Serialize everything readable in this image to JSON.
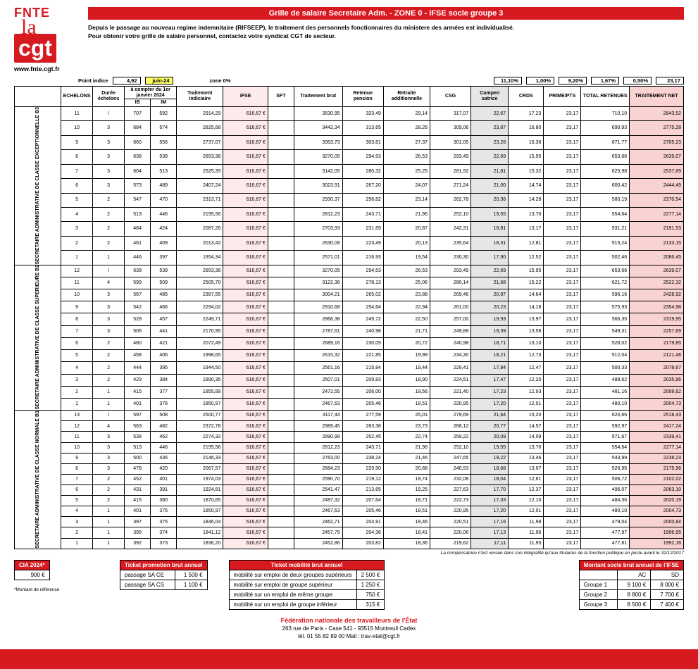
{
  "logo": {
    "line1": "FNTE",
    "line2": "la",
    "line3": "cgt",
    "url": "www.fnte.cgt.fr"
  },
  "title": "Grille de salaire Secretaire Adm. - ZONE 0 - IFSE socle groupe 3",
  "subtitle1": "Depuis le passage au nouveau regime indemnitaire (RIFSEEP), le traitement des personnels fonctionnaires du ministere des armées est individualisé.",
  "subtitle2": "Pour obtenir votre grille de salaire personnel, contactez votre syndicat CGT de secteur.",
  "params": {
    "point_indice_label": "Point indice",
    "point_indice": "4,92",
    "periode": "juin-24",
    "zone_label": "zone 0%"
  },
  "rates": [
    "11,10%",
    "1,00%",
    "9,20%",
    "1,67%",
    "0,50%",
    "23,17"
  ],
  "headers": {
    "echelons": "ECHELONS",
    "duree": "Durée échelons",
    "compter": "à compter du 1er janvier 2024",
    "ib": "IB",
    "im": "IM",
    "trait_ind": "Traitement indiciaire",
    "ifse": "IFSE",
    "sft": "SFT",
    "trait_brut": "Traitement brut",
    "ret_pension": "Retenue pension",
    "ret_add": "Retraite additionnelle",
    "csg": "CSG",
    "compens": "Compen satrice",
    "crds": "CRDS",
    "prime": "PRIME/PTS",
    "total_ret": "TOTAL RETENUES",
    "trait_net": "TRAITEMENT NET"
  },
  "side": [
    "SECRETAIRE ADMINISTRATIVE DE CLASSE EXCEPTIONNELLE B3",
    "SECRETAIRE ADMINISTRATIVE DE CLASSE SUPERIEURE B2",
    "SECRETAIRE ADMINISTRATIVE DE CLASSE NORMALE B1"
  ],
  "rows": [
    [
      "11",
      "/",
      "707",
      "592",
      "2914,29",
      "616,67 €",
      "",
      "3530,95",
      "323,49",
      "29,14",
      "317,07",
      "22,67",
      "17,23",
      "23,17",
      "710,10",
      "2843,52"
    ],
    [
      "10",
      "3",
      "684",
      "574",
      "2825,68",
      "616,67 €",
      "",
      "3442,34",
      "313,65",
      "28,26",
      "309,06",
      "23,87",
      "16,80",
      "23,17",
      "690,93",
      "2775,28"
    ],
    [
      "9",
      "3",
      "660",
      "556",
      "2737,07",
      "616,67 €",
      "",
      "3353,73",
      "303,81",
      "27,37",
      "301,05",
      "23,26",
      "16,36",
      "23,17",
      "671,77",
      "2705,23"
    ],
    [
      "8",
      "3",
      "638",
      "539",
      "2653,38",
      "616,67 €",
      "",
      "3270,05",
      "294,53",
      "26,53",
      "293,49",
      "22,69",
      "15,95",
      "23,17",
      "653,66",
      "2639,07"
    ],
    [
      "7",
      "3",
      "604",
      "513",
      "2525,39",
      "616,67 €",
      "",
      "3142,05",
      "280,32",
      "25,25",
      "281,92",
      "21,81",
      "15,32",
      "23,17",
      "625,98",
      "2537,89"
    ],
    [
      "6",
      "3",
      "573",
      "489",
      "2407,24",
      "616,67 €",
      "",
      "3023,91",
      "267,20",
      "24,07",
      "271,24",
      "21,00",
      "14,74",
      "23,17",
      "600,42",
      "2444,49"
    ],
    [
      "5",
      "2",
      "547",
      "470",
      "2313,71",
      "616,67 €",
      "",
      "2930,37",
      "256,82",
      "23,14",
      "262,78",
      "20,36",
      "14,28",
      "23,17",
      "580,19",
      "2370,54"
    ],
    [
      "4",
      "2",
      "513",
      "446",
      "2195,56",
      "616,67 €",
      "",
      "2812,23",
      "243,71",
      "21,96",
      "252,10",
      "19,55",
      "13,70",
      "23,17",
      "554,64",
      "2277,14"
    ],
    [
      "3",
      "2",
      "484",
      "424",
      "2087,26",
      "616,67 €",
      "",
      "2703,93",
      "231,69",
      "20,87",
      "242,31",
      "18,81",
      "13,17",
      "23,17",
      "531,21",
      "2191,53"
    ],
    [
      "2",
      "2",
      "461",
      "409",
      "2013,42",
      "616,67 €",
      "",
      "2630,08",
      "223,49",
      "20,13",
      "235,64",
      "18,31",
      "12,81",
      "23,17",
      "515,24",
      "2133,15"
    ],
    [
      "1",
      "1",
      "446",
      "397",
      "1954,34",
      "616,67 €",
      "",
      "2571,01",
      "216,93",
      "19,54",
      "230,30",
      "17,90",
      "12,52",
      "23,17",
      "502,46",
      "2086,45"
    ],
    [
      "12",
      "/",
      "638",
      "539",
      "2653,38",
      "616,67 €",
      "",
      "3270,05",
      "294,53",
      "26,53",
      "293,49",
      "22,69",
      "15,95",
      "23,17",
      "653,66",
      "2639,07"
    ],
    [
      "11",
      "4",
      "599",
      "509",
      "2505,70",
      "616,67 €",
      "",
      "3122,36",
      "278,13",
      "25,06",
      "280,14",
      "21,68",
      "15,22",
      "23,17",
      "621,72",
      "2522,32"
    ],
    [
      "10",
      "3",
      "567",
      "485",
      "2387,55",
      "616,67 €",
      "",
      "3004,21",
      "265,02",
      "23,88",
      "269,46",
      "20,87",
      "14,64",
      "23,17",
      "596,16",
      "2428,92"
    ],
    [
      "9",
      "3",
      "542",
      "466",
      "2294,02",
      "616,67 €",
      "",
      "2910,68",
      "254,64",
      "22,94",
      "261,00",
      "20,23",
      "14,18",
      "23,17",
      "575,93",
      "2354,98"
    ],
    [
      "8",
      "3",
      "528",
      "457",
      "2249,71",
      "616,67 €",
      "",
      "2866,38",
      "249,72",
      "22,50",
      "257,00",
      "19,93",
      "13,97",
      "23,17",
      "566,35",
      "2319,95"
    ],
    [
      "7",
      "3",
      "506",
      "441",
      "2170,95",
      "616,67 €",
      "",
      "2787,61",
      "240,98",
      "21,71",
      "249,88",
      "19,39",
      "13,58",
      "23,17",
      "549,31",
      "2257,69"
    ],
    [
      "6",
      "2",
      "480",
      "421",
      "2072,49",
      "616,67 €",
      "",
      "2689,16",
      "230,05",
      "20,72",
      "240,98",
      "18,71",
      "13,10",
      "23,17",
      "528,02",
      "2179,85"
    ],
    [
      "5",
      "2",
      "458",
      "406",
      "1998,65",
      "616,67 €",
      "",
      "2615,32",
      "221,85",
      "19,99",
      "234,30",
      "18,21",
      "12,73",
      "23,17",
      "512,04",
      "2121,48"
    ],
    [
      "4",
      "2",
      "444",
      "395",
      "1944,50",
      "616,67 €",
      "",
      "2561,16",
      "215,84",
      "19,44",
      "229,41",
      "17,84",
      "12,47",
      "23,17",
      "500,33",
      "2078,67"
    ],
    [
      "3",
      "2",
      "429",
      "384",
      "1890,35",
      "616,67 €",
      "",
      "2507,01",
      "209,83",
      "18,90",
      "224,51",
      "17,47",
      "12,20",
      "23,17",
      "488,62",
      "2035,86"
    ],
    [
      "2",
      "1",
      "415",
      "377",
      "1855,89",
      "616,67 €",
      "",
      "2472,55",
      "206,00",
      "18,56",
      "221,40",
      "17,23",
      "12,03",
      "23,17",
      "481,16",
      "2008,62"
    ],
    [
      "1",
      "1",
      "401",
      "376",
      "1850,97",
      "616,67 €",
      "",
      "2467,63",
      "205,46",
      "18,51",
      "220,95",
      "17,20",
      "12,01",
      "23,17",
      "480,10",
      "2004,73"
    ],
    [
      "13",
      "/",
      "597",
      "508",
      "2500,77",
      "616,67 €",
      "",
      "3117,44",
      "277,59",
      "25,01",
      "279,69",
      "21,64",
      "15,20",
      "23,17",
      "620,66",
      "2518,43"
    ],
    [
      "12",
      "4",
      "563",
      "482",
      "2372,78",
      "616,67 €",
      "",
      "2989,45",
      "263,38",
      "23,73",
      "268,12",
      "20,77",
      "14,57",
      "23,17",
      "592,97",
      "2417,24"
    ],
    [
      "11",
      "3",
      "538",
      "462",
      "2274,32",
      "616,67 €",
      "",
      "2890,99",
      "252,45",
      "22,74",
      "259,22",
      "20,09",
      "14,09",
      "23,17",
      "571,67",
      "2339,41"
    ],
    [
      "10",
      "3",
      "513",
      "446",
      "2195,56",
      "616,67 €",
      "",
      "2812,23",
      "243,71",
      "21,96",
      "252,10",
      "19,55",
      "13,70",
      "23,17",
      "554,64",
      "2277,14"
    ],
    [
      "9",
      "3",
      "500",
      "436",
      "2146,33",
      "616,67 €",
      "",
      "2763,00",
      "238,24",
      "21,46",
      "247,65",
      "19,22",
      "13,46",
      "23,17",
      "543,99",
      "2238,23"
    ],
    [
      "8",
      "3",
      "478",
      "420",
      "2067,57",
      "616,67 €",
      "",
      "2684,23",
      "229,50",
      "20,68",
      "240,53",
      "18,68",
      "13,07",
      "23,17",
      "526,95",
      "2175,96"
    ],
    [
      "7",
      "2",
      "452",
      "401",
      "1974,03",
      "616,67 €",
      "",
      "2590,70",
      "219,12",
      "19,74",
      "232,08",
      "18,04",
      "12,61",
      "23,17",
      "506,72",
      "2102,02"
    ],
    [
      "6",
      "2",
      "431",
      "391",
      "1924,81",
      "616,67 €",
      "",
      "2541,47",
      "213,65",
      "19,25",
      "227,63",
      "17,70",
      "12,37",
      "23,17",
      "496,07",
      "2063,10"
    ],
    [
      "5",
      "2",
      "415",
      "380",
      "1870,65",
      "616,67 €",
      "",
      "2487,32",
      "207,64",
      "18,71",
      "222,73",
      "17,33",
      "12,10",
      "23,17",
      "484,36",
      "2020,19"
    ],
    [
      "4",
      "1",
      "401",
      "376",
      "1850,97",
      "616,67 €",
      "",
      "2467,63",
      "205,46",
      "18,51",
      "220,95",
      "17,20",
      "12,01",
      "23,17",
      "480,10",
      "2004,73"
    ],
    [
      "3",
      "1",
      "397",
      "375",
      "1846,04",
      "616,67 €",
      "",
      "2462,71",
      "204,91",
      "18,46",
      "220,51",
      "17,16",
      "11,98",
      "23,17",
      "479,04",
      "2000,84"
    ],
    [
      "2",
      "1",
      "395",
      "374",
      "1841,12",
      "616,67 €",
      "",
      "2457,79",
      "204,36",
      "18,41",
      "220,06",
      "17,13",
      "11,96",
      "23,17",
      "477,97",
      "1996,95"
    ],
    [
      "1",
      "1",
      "392",
      "373",
      "1836,20",
      "616,67 €",
      "",
      "2452,86",
      "203,82",
      "18,36",
      "219,62",
      "17,11",
      "11,93",
      "23,17",
      "477,81",
      "1992,16"
    ]
  ],
  "section_spans": [
    11,
    12,
    13
  ],
  "footnote": "La compensatrice n'est versée dans son intégralité qu'aux titulaires de la fonction publique en poste avant le 31/12/2017",
  "cia": {
    "title": "CIA 2024*",
    "value": "900 €",
    "note": "*Montant de référence"
  },
  "ticket_promo": {
    "title": "Ticket promotion brut annuel",
    "rows": [
      [
        "passage SA CE",
        "1 500 €"
      ],
      [
        "passage SA CS",
        "1 100 €"
      ]
    ]
  },
  "ticket_mob": {
    "title": "Ticket mobilité brut annuel",
    "rows": [
      [
        "mobilité sur emploi de deux groupes supérieurs",
        "2 500 €"
      ],
      [
        "mobilité sur emploi de groupe supérieur",
        "1 250 €"
      ],
      [
        "mobilité sur un emploi de même groupe",
        "750 €"
      ],
      [
        "mobilité sur un emploi de groupe inférieur",
        "315 €"
      ]
    ]
  },
  "socle": {
    "title": "Montant socle brut annuel de l'IFSE",
    "cols": [
      "AC",
      "SD"
    ],
    "rows": [
      [
        "Groupe 1",
        "9 100 €",
        "8 000 €"
      ],
      [
        "Groupe 2",
        "8 800 €",
        "7 700 €"
      ],
      [
        "Groupe 3",
        "8 500 €",
        "7 400 €"
      ]
    ]
  },
  "footer": {
    "t1": "Fédération nationale des travailleurs de l'État",
    "t2": "263 rue de Paris - Case 541 - 93515 Montreuil Cedex",
    "t3": "tél. 01 55 82 89 00 Mail : trav-etat@cgt.fr"
  }
}
